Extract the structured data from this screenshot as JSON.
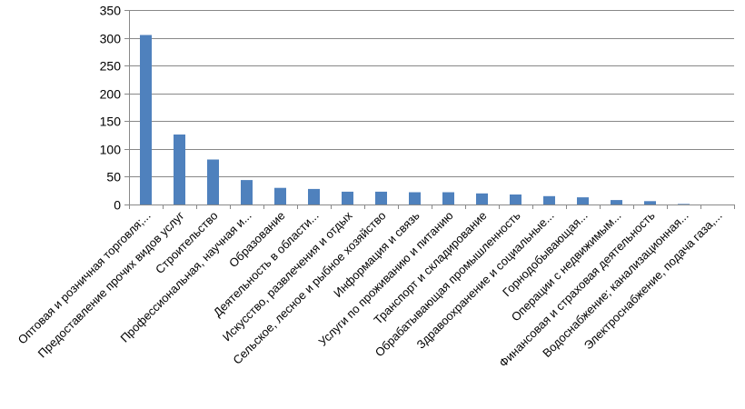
{
  "chart_data": {
    "type": "bar",
    "title": "",
    "xlabel": "",
    "ylabel": "",
    "ylim": [
      0,
      350
    ],
    "yticks": [
      0,
      50,
      100,
      150,
      200,
      250,
      300,
      350
    ],
    "grid": true,
    "legend": "none",
    "bar_color": "#4F81BD",
    "categories": [
      "Оптовая и розничная торговля;...",
      "Предоставление прочих видов услуг",
      "Строительство",
      "Профессиональная, научная и...",
      "Образование",
      "Деятельность в области...",
      "Искусство, развлечения и отдых",
      "Сельское, лесное и рыбное хозяйство",
      "Информация и связь",
      "Услуги по проживанию и питанию",
      "Транспорт и складирование",
      "Обрабатывающая промышленность",
      "Здравоохранение и социальные...",
      "Горнодобывающая...",
      "Операции с недвижимым...",
      "Финансовая и страховая деятельность",
      "Водоснабжение; канализационная...",
      "Электроснабжение, подача газа,..."
    ],
    "values": [
      305,
      126,
      81,
      44,
      30,
      28,
      23,
      23,
      22,
      22,
      20,
      18,
      15,
      13,
      8,
      6,
      1,
      0
    ]
  }
}
